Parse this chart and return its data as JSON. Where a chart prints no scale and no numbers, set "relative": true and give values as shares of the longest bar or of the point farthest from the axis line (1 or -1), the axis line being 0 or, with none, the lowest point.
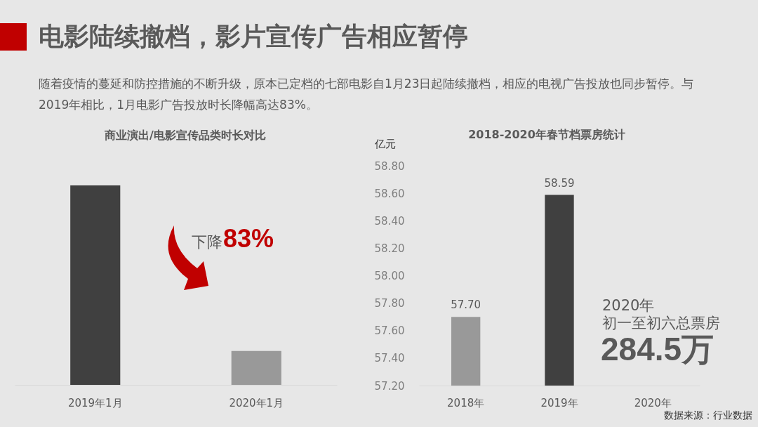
{
  "chart_data": [
    {
      "type": "other",
      "title": "电影陆续撤档，影片宣传广告相应暂停",
      "subtitle": "随着疫情的蔓延和防控措施的不断升级，原本已定档的七部电影自1月23日起陆续撤档，相应的电视广告投放也同步暂停。与2019年相比，1月电影广告投放时长降幅高达83%。"
    },
    {
      "type": "bar",
      "title": "商业演出/电影宣传品类时长对比",
      "categories": [
        "2019年1月",
        "2020年1月"
      ],
      "values": [
        1,
        0.17
      ],
      "colors": [
        "#404040",
        "#999999"
      ],
      "relative": true,
      "annotations": [
        "下降",
        "83%"
      ]
    },
    {
      "type": "bar",
      "title": "2018-2020年春节档票房统计",
      "ylabel": "亿元",
      "categories": [
        "2018年",
        "2019年",
        "2020年"
      ],
      "values": [
        57.7,
        58.59,
        null
      ],
      "colors": [
        "#999999",
        "#404040",
        null
      ],
      "value_labels": [
        "57.70",
        "58.59",
        null
      ],
      "ylim": [
        57.2,
        58.8
      ],
      "yticks": [
        {
          "value": 57.2,
          "label": "57.20"
        },
        {
          "value": 57.4,
          "label": "57.40"
        },
        {
          "value": 57.6,
          "label": "57.60"
        },
        {
          "value": 57.8,
          "label": "57.80"
        },
        {
          "value": 58.0,
          "label": "58.00"
        },
        {
          "value": 58.2,
          "label": "58.20"
        },
        {
          "value": 58.4,
          "label": "58.40"
        },
        {
          "value": 58.6,
          "label": "58.60"
        },
        {
          "value": 58.8,
          "label": "58.80"
        }
      ],
      "annotations": [
        "2020年",
        "初一至初六总票房",
        "284.5万",
        "数据来源：行业数据"
      ]
    }
  ]
}
